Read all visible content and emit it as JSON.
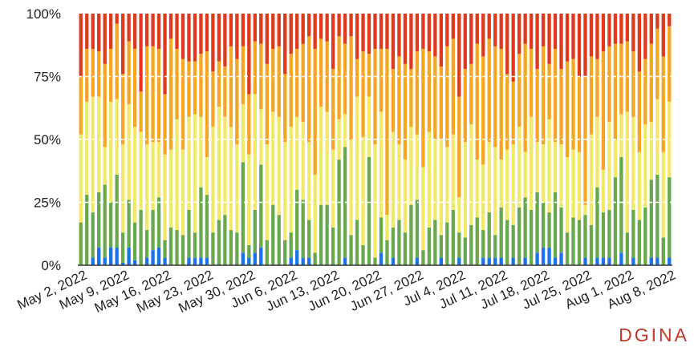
{
  "chart_data": {
    "type": "bar",
    "stacked": "percent",
    "grid": true,
    "legend": "none",
    "ylim": [
      0,
      100
    ],
    "y_tick_labels": [
      "0%",
      "25%",
      "50%",
      "75%",
      "100%"
    ],
    "x_tick_labels": [
      "May 2, 2022",
      "May 9, 2022",
      "May 16, 2022",
      "May 23, 2022",
      "May 30, 2022",
      "Jun 6, 2022",
      "Jun 13, 2022",
      "Jun 20, 2022",
      "Jun 27, 2022",
      "Jul 4, 2022",
      "Jul 11, 2022",
      "Jul 18, 2022",
      "Jul 25, 2022",
      "Aug 1, 2022",
      "Aug 8, 2022"
    ],
    "x_tick_index": [
      0,
      7,
      14,
      21,
      28,
      35,
      42,
      49,
      56,
      63,
      70,
      77,
      84,
      91,
      98
    ],
    "days": 105,
    "series_colors": [
      "#1a73e8",
      "#6aa84f",
      "#f1e86a",
      "#f5a623",
      "#e03a1e"
    ],
    "boundaries": [
      [
        0,
        17,
        52,
        75
      ],
      [
        0,
        28,
        65,
        86
      ],
      [
        3,
        21,
        67,
        86
      ],
      [
        7,
        29,
        67,
        85
      ],
      [
        3,
        32,
        47,
        80
      ],
      [
        7,
        25,
        65,
        86
      ],
      [
        7,
        36,
        66,
        96
      ],
      [
        1,
        13,
        48,
        76
      ],
      [
        7,
        26,
        64,
        89
      ],
      [
        2,
        17,
        55,
        86
      ],
      [
        0,
        22,
        53,
        69
      ],
      [
        3,
        14,
        48,
        87
      ],
      [
        6,
        22,
        49,
        87
      ],
      [
        7,
        27,
        49,
        86
      ],
      [
        3,
        10,
        44,
        68
      ],
      [
        0,
        15,
        46,
        90
      ],
      [
        0,
        14,
        58,
        86
      ],
      [
        0,
        12,
        46,
        82
      ],
      [
        3,
        22,
        59,
        81
      ],
      [
        3,
        13,
        60,
        81
      ],
      [
        3,
        31,
        59,
        84
      ],
      [
        3,
        28,
        43,
        85
      ],
      [
        0,
        13,
        55,
        77
      ],
      [
        0,
        18,
        63,
        81
      ],
      [
        0,
        20,
        59,
        79
      ],
      [
        0,
        14,
        55,
        87
      ],
      [
        0,
        13,
        48,
        82
      ],
      [
        5,
        41,
        64,
        87
      ],
      [
        3,
        8,
        44,
        68
      ],
      [
        5,
        22,
        68,
        89
      ],
      [
        7,
        40,
        62,
        88
      ],
      [
        0,
        10,
        48,
        80
      ],
      [
        0,
        24,
        61,
        86
      ],
      [
        0,
        20,
        59,
        87
      ],
      [
        0,
        10,
        49,
        76
      ],
      [
        3,
        13,
        55,
        84
      ],
      [
        6,
        30,
        59,
        86
      ],
      [
        3,
        26,
        57,
        88
      ],
      [
        3,
        18,
        49,
        91
      ],
      [
        0,
        5,
        36,
        86
      ],
      [
        0,
        24,
        63,
        90
      ],
      [
        0,
        24,
        61,
        89
      ],
      [
        0,
        15,
        46,
        78
      ],
      [
        0,
        42,
        58,
        91
      ],
      [
        3,
        47,
        60,
        88
      ],
      [
        0,
        12,
        50,
        91
      ],
      [
        0,
        18,
        67,
        82
      ],
      [
        0,
        8,
        51,
        85
      ],
      [
        0,
        43,
        67,
        84
      ],
      [
        0,
        3,
        48,
        86
      ],
      [
        5,
        19,
        61,
        86
      ],
      [
        0,
        10,
        20,
        86
      ],
      [
        3,
        15,
        53,
        78
      ],
      [
        0,
        18,
        48,
        83
      ],
      [
        0,
        13,
        42,
        80
      ],
      [
        0,
        24,
        55,
        78
      ],
      [
        3,
        26,
        52,
        85
      ],
      [
        0,
        6,
        39,
        86
      ],
      [
        0,
        15,
        53,
        85
      ],
      [
        0,
        18,
        50,
        83
      ],
      [
        3,
        12,
        50,
        79
      ],
      [
        0,
        17,
        47,
        87
      ],
      [
        0,
        22,
        52,
        90
      ],
      [
        3,
        13,
        27,
        67
      ],
      [
        0,
        11,
        49,
        78
      ],
      [
        0,
        16,
        56,
        80
      ],
      [
        0,
        19,
        42,
        88
      ],
      [
        3,
        14,
        40,
        83
      ],
      [
        3,
        21,
        49,
        90
      ],
      [
        3,
        12,
        47,
        87
      ],
      [
        3,
        23,
        42,
        86
      ],
      [
        0,
        18,
        46,
        76
      ],
      [
        3,
        16,
        48,
        73
      ],
      [
        0,
        23,
        55,
        84
      ],
      [
        3,
        27,
        45,
        88
      ],
      [
        0,
        22,
        59,
        86
      ],
      [
        5,
        29,
        49,
        78
      ],
      [
        7,
        25,
        48,
        87
      ],
      [
        7,
        21,
        58,
        80
      ],
      [
        3,
        29,
        49,
        86
      ],
      [
        5,
        23,
        48,
        78
      ],
      [
        0,
        13,
        43,
        81
      ],
      [
        0,
        19,
        46,
        82
      ],
      [
        0,
        18,
        45,
        75
      ],
      [
        3,
        20,
        24,
        75
      ],
      [
        0,
        16,
        52,
        83
      ],
      [
        3,
        31,
        59,
        82
      ],
      [
        3,
        21,
        38,
        85
      ],
      [
        3,
        22,
        57,
        87
      ],
      [
        0,
        35,
        50,
        88
      ],
      [
        5,
        43,
        60,
        88
      ],
      [
        0,
        13,
        61,
        89
      ],
      [
        3,
        22,
        59,
        85
      ],
      [
        0,
        18,
        45,
        77
      ],
      [
        0,
        23,
        56,
        82
      ],
      [
        3,
        34,
        57,
        88
      ],
      [
        3,
        36,
        66,
        94
      ],
      [
        0,
        11,
        45,
        83
      ],
      [
        3,
        35,
        65,
        95
      ],
      [
        0,
        0,
        0,
        0
      ],
      [
        0,
        0,
        0,
        0
      ],
      [
        0,
        0,
        0,
        0
      ],
      [
        0,
        0,
        0,
        0
      ],
      [
        0,
        0,
        0,
        0
      ],
      [
        0,
        0,
        0,
        0
      ]
    ],
    "data_start_index": 0,
    "data_count": 99
  },
  "brand": {
    "logo_text": "DGINA"
  }
}
